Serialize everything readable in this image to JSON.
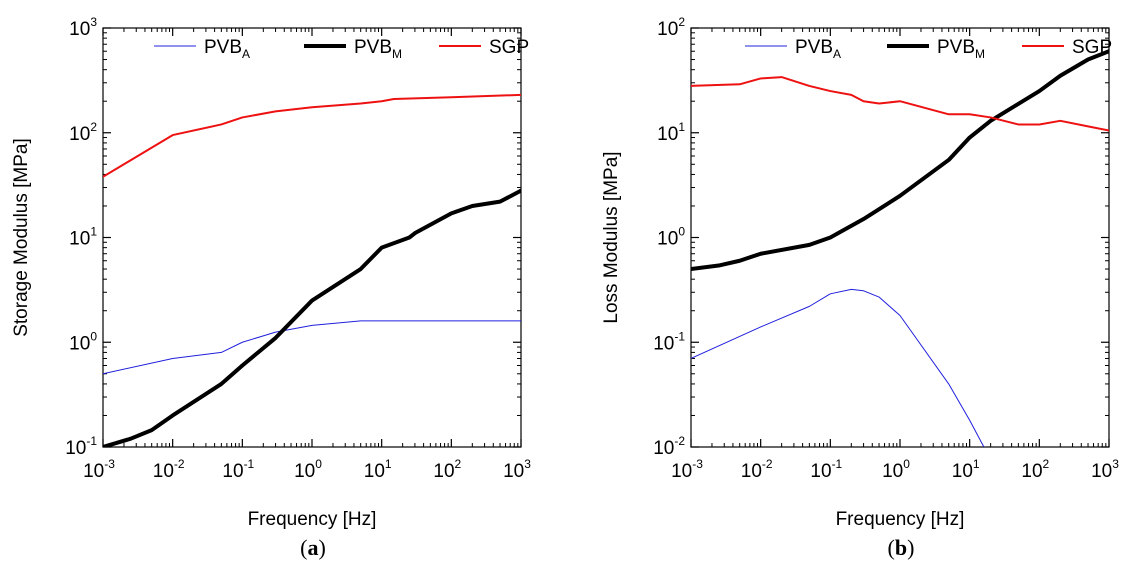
{
  "figure": {
    "captions": [
      {
        "open": "(",
        "letter": "a",
        "close": ")"
      },
      {
        "open": "(",
        "letter": "b",
        "close": ")"
      }
    ]
  },
  "chart_data": [
    {
      "type": "line",
      "xlabel": "Frequency [Hz]",
      "ylabel": "Storage Modulus [MPa]",
      "xscale": "log",
      "yscale": "log",
      "xlim": [
        0.001,
        1000
      ],
      "ylim": [
        0.1,
        1000
      ],
      "x_ticks": [
        {
          "base": "10",
          "exp": "-3"
        },
        {
          "base": "10",
          "exp": "-2"
        },
        {
          "base": "10",
          "exp": "-1"
        },
        {
          "base": "10",
          "exp": "0"
        },
        {
          "base": "10",
          "exp": "1"
        },
        {
          "base": "10",
          "exp": "2"
        },
        {
          "base": "10",
          "exp": "3"
        }
      ],
      "y_ticks": [
        {
          "base": "10",
          "exp": "-1"
        },
        {
          "base": "10",
          "exp": "0"
        },
        {
          "base": "10",
          "exp": "1"
        },
        {
          "base": "10",
          "exp": "2"
        },
        {
          "base": "10",
          "exp": "3"
        }
      ],
      "legend_position": "top",
      "series": [
        {
          "name": "PVB",
          "name_sub": "A",
          "color": "#2020dd",
          "weight": "thin",
          "x": [
            0.001,
            0.01,
            0.05,
            0.1,
            0.3,
            1,
            5,
            10,
            100,
            1000
          ],
          "y": [
            0.5,
            0.7,
            0.8,
            1.0,
            1.25,
            1.45,
            1.6,
            1.6,
            1.6,
            1.6
          ]
        },
        {
          "name": "PVB",
          "name_sub": "M",
          "color": "#000000",
          "weight": "thick",
          "x": [
            0.001,
            0.0025,
            0.005,
            0.01,
            0.05,
            0.1,
            0.3,
            1,
            5,
            10,
            25,
            30,
            100,
            200,
            500,
            1000
          ],
          "y": [
            0.1,
            0.12,
            0.145,
            0.2,
            0.4,
            0.6,
            1.1,
            2.5,
            5,
            8,
            10,
            11,
            17,
            20,
            22,
            28
          ]
        },
        {
          "name": "SGP",
          "name_sub": "",
          "color": "#ee1111",
          "weight": "medium",
          "x": [
            0.001,
            0.01,
            0.05,
            0.1,
            0.3,
            1,
            5,
            10,
            15,
            100,
            1000
          ],
          "y": [
            38,
            95,
            120,
            140,
            160,
            175,
            190,
            200,
            210,
            218,
            230
          ]
        }
      ]
    },
    {
      "type": "line",
      "xlabel": "Frequency [Hz]",
      "ylabel": "Loss Modulus [MPa]",
      "xscale": "log",
      "yscale": "log",
      "xlim": [
        0.001,
        1000
      ],
      "ylim": [
        0.01,
        100
      ],
      "x_ticks": [
        {
          "base": "10",
          "exp": "-3"
        },
        {
          "base": "10",
          "exp": "-2"
        },
        {
          "base": "10",
          "exp": "-1"
        },
        {
          "base": "10",
          "exp": "0"
        },
        {
          "base": "10",
          "exp": "1"
        },
        {
          "base": "10",
          "exp": "2"
        },
        {
          "base": "10",
          "exp": "3"
        }
      ],
      "y_ticks": [
        {
          "base": "10",
          "exp": "-2"
        },
        {
          "base": "10",
          "exp": "-1"
        },
        {
          "base": "10",
          "exp": "0"
        },
        {
          "base": "10",
          "exp": "1"
        },
        {
          "base": "10",
          "exp": "2"
        }
      ],
      "legend_position": "top",
      "series": [
        {
          "name": "PVB",
          "name_sub": "A",
          "color": "#2020dd",
          "weight": "thin",
          "x": [
            0.001,
            0.01,
            0.05,
            0.1,
            0.2,
            0.3,
            0.5,
            1,
            5,
            10,
            16
          ],
          "y": [
            0.07,
            0.14,
            0.22,
            0.29,
            0.32,
            0.31,
            0.27,
            0.18,
            0.04,
            0.018,
            0.01
          ]
        },
        {
          "name": "PVB",
          "name_sub": "M",
          "color": "#000000",
          "weight": "thick",
          "x": [
            0.001,
            0.0025,
            0.005,
            0.01,
            0.05,
            0.1,
            0.3,
            1,
            5,
            10,
            20,
            100,
            200,
            500,
            1000
          ],
          "y": [
            0.5,
            0.54,
            0.6,
            0.7,
            0.85,
            1.0,
            1.5,
            2.5,
            5.5,
            9,
            13,
            25,
            35,
            50,
            60
          ]
        },
        {
          "name": "SGP",
          "name_sub": "",
          "color": "#ee1111",
          "weight": "medium",
          "x": [
            0.001,
            0.005,
            0.01,
            0.02,
            0.05,
            0.1,
            0.2,
            0.3,
            0.5,
            1,
            5,
            10,
            20,
            50,
            100,
            200,
            500,
            1000
          ],
          "y": [
            28,
            29,
            33,
            34,
            28,
            25,
            23,
            20,
            19,
            20,
            15,
            15,
            14,
            12,
            12,
            13,
            11.5,
            10.5
          ]
        }
      ]
    }
  ]
}
